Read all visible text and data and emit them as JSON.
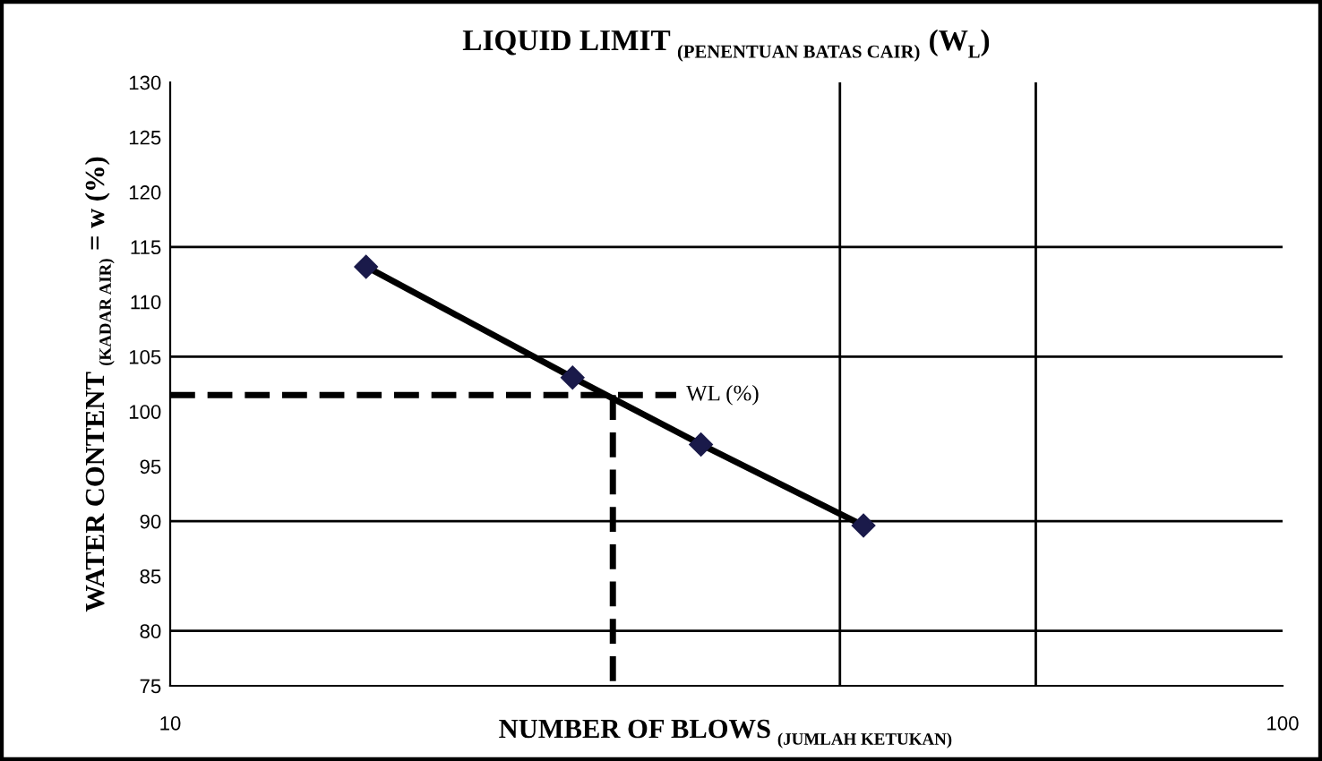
{
  "chart_data": {
    "type": "line",
    "title": "LIQUID LIMIT $_{(PENENTUAN BATAS CAIR)}$ (W$_{L}$)",
    "xlabel": "NUMBER OF BLOWS $_{(JUMLAH KETUKAN)}$",
    "ylabel": "WATER CONTENT $_{(KADAR AIR)}$ = w (%)",
    "log": "x",
    "xlim": [
      10,
      100
    ],
    "xticks": [
      10,
      100
    ],
    "ylim": [
      75,
      130
    ],
    "yticks": [
      75,
      80,
      85,
      90,
      95,
      100,
      105,
      110,
      115,
      120,
      125,
      130
    ],
    "grid": false,
    "series": [
      {
        "x": [
          15,
          23,
          30,
          42
        ],
        "values": [
          113.2,
          103.1,
          97.0,
          89.6
        ],
        "color": "#000000",
        "marker": "diamond",
        "line_style": "solid"
      },
      {
        "x": [
          10,
          28.5
        ],
        "values": [
          101.5,
          101.5
        ],
        "color": "#000000",
        "marker": "none",
        "line_style": "dashed"
      },
      {
        "x": [
          25,
          25
        ],
        "values": [
          101.5,
          75
        ],
        "color": "#000000",
        "marker": "none",
        "line_style": "dashed"
      }
    ],
    "ref_lines": [
      {
        "axis": "y",
        "value": 115,
        "color": "#000000"
      },
      {
        "axis": "y",
        "value": 105,
        "color": "#000000"
      },
      {
        "axis": "y",
        "value": 90,
        "color": "#000000"
      },
      {
        "axis": "y",
        "value": 80,
        "color": "#000000"
      },
      {
        "axis": "x",
        "value": 40,
        "color": "#000000"
      },
      {
        "axis": "x",
        "value": 60,
        "color": "#000000"
      }
    ],
    "annotations": [
      {
        "text": "WL (%)",
        "x": 28.5,
        "y": 101.5
      }
    ]
  }
}
